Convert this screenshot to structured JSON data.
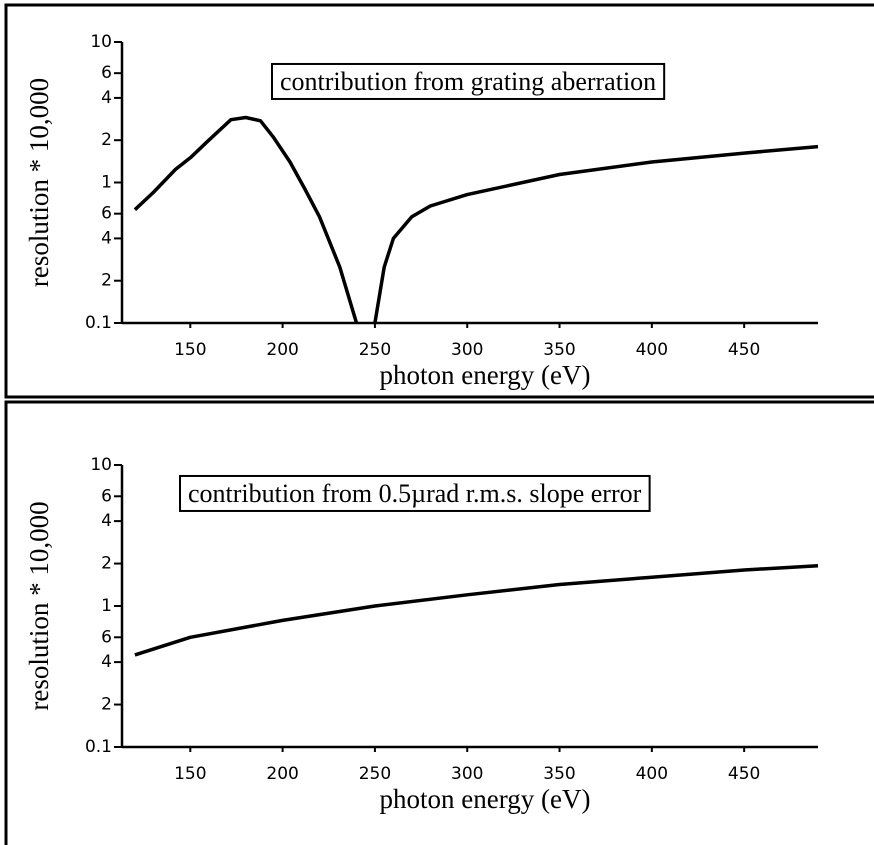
{
  "chart_data": [
    {
      "type": "line",
      "log_y": true,
      "annotation": "contribution from grating aberration",
      "x_label": "photon energy (eV)",
      "y_label": "resolution * 10,000",
      "xlim": [
        113,
        490
      ],
      "xticks": [
        150,
        200,
        250,
        300,
        350,
        400,
        450
      ],
      "ylim": [
        0.1,
        10
      ],
      "yticks": [
        10,
        {
          "value": 6,
          "label": "6"
        },
        4,
        2,
        1,
        {
          "value": 0.6,
          "label": "6"
        },
        {
          "value": 0.4,
          "label": "4"
        },
        {
          "value": 0.2,
          "label": "2"
        },
        0.1
      ],
      "x": [
        120,
        130,
        142,
        150,
        160,
        172,
        180,
        188,
        195,
        204,
        212,
        220,
        231,
        236,
        240,
        245,
        250,
        255,
        260,
        270,
        280,
        300,
        350,
        400,
        450,
        490
      ],
      "series": [
        {
          "color": "#000000",
          "values": [
            0.64,
            0.85,
            1.24,
            1.5,
            2.0,
            2.8,
            2.9,
            2.75,
            2.1,
            1.4,
            0.9,
            0.57,
            0.25,
            0.15,
            0.1,
            null,
            0.1,
            0.25,
            0.4,
            0.57,
            0.68,
            0.82,
            1.14,
            1.4,
            1.62,
            1.8
          ]
        }
      ]
    },
    {
      "type": "line",
      "log_y": true,
      "annotation": "contribution from 0.5µrad r.m.s. slope error",
      "x_label": "photon energy (eV)",
      "y_label": "resolution * 10,000",
      "xlim": [
        113,
        490
      ],
      "xticks": [
        150,
        200,
        250,
        300,
        350,
        400,
        450
      ],
      "ylim": [
        0.1,
        10
      ],
      "yticks": [
        10,
        {
          "value": 6,
          "label": "6"
        },
        4,
        2,
        1,
        {
          "value": 0.6,
          "label": "6"
        },
        {
          "value": 0.4,
          "label": "4"
        },
        {
          "value": 0.2,
          "label": "2"
        },
        0.1
      ],
      "x": [
        120,
        150,
        200,
        250,
        300,
        350,
        400,
        450,
        490
      ],
      "series": [
        {
          "color": "#000000",
          "values": [
            0.45,
            0.6,
            0.79,
            1.0,
            1.2,
            1.42,
            1.6,
            1.8,
            1.93
          ]
        }
      ]
    }
  ]
}
